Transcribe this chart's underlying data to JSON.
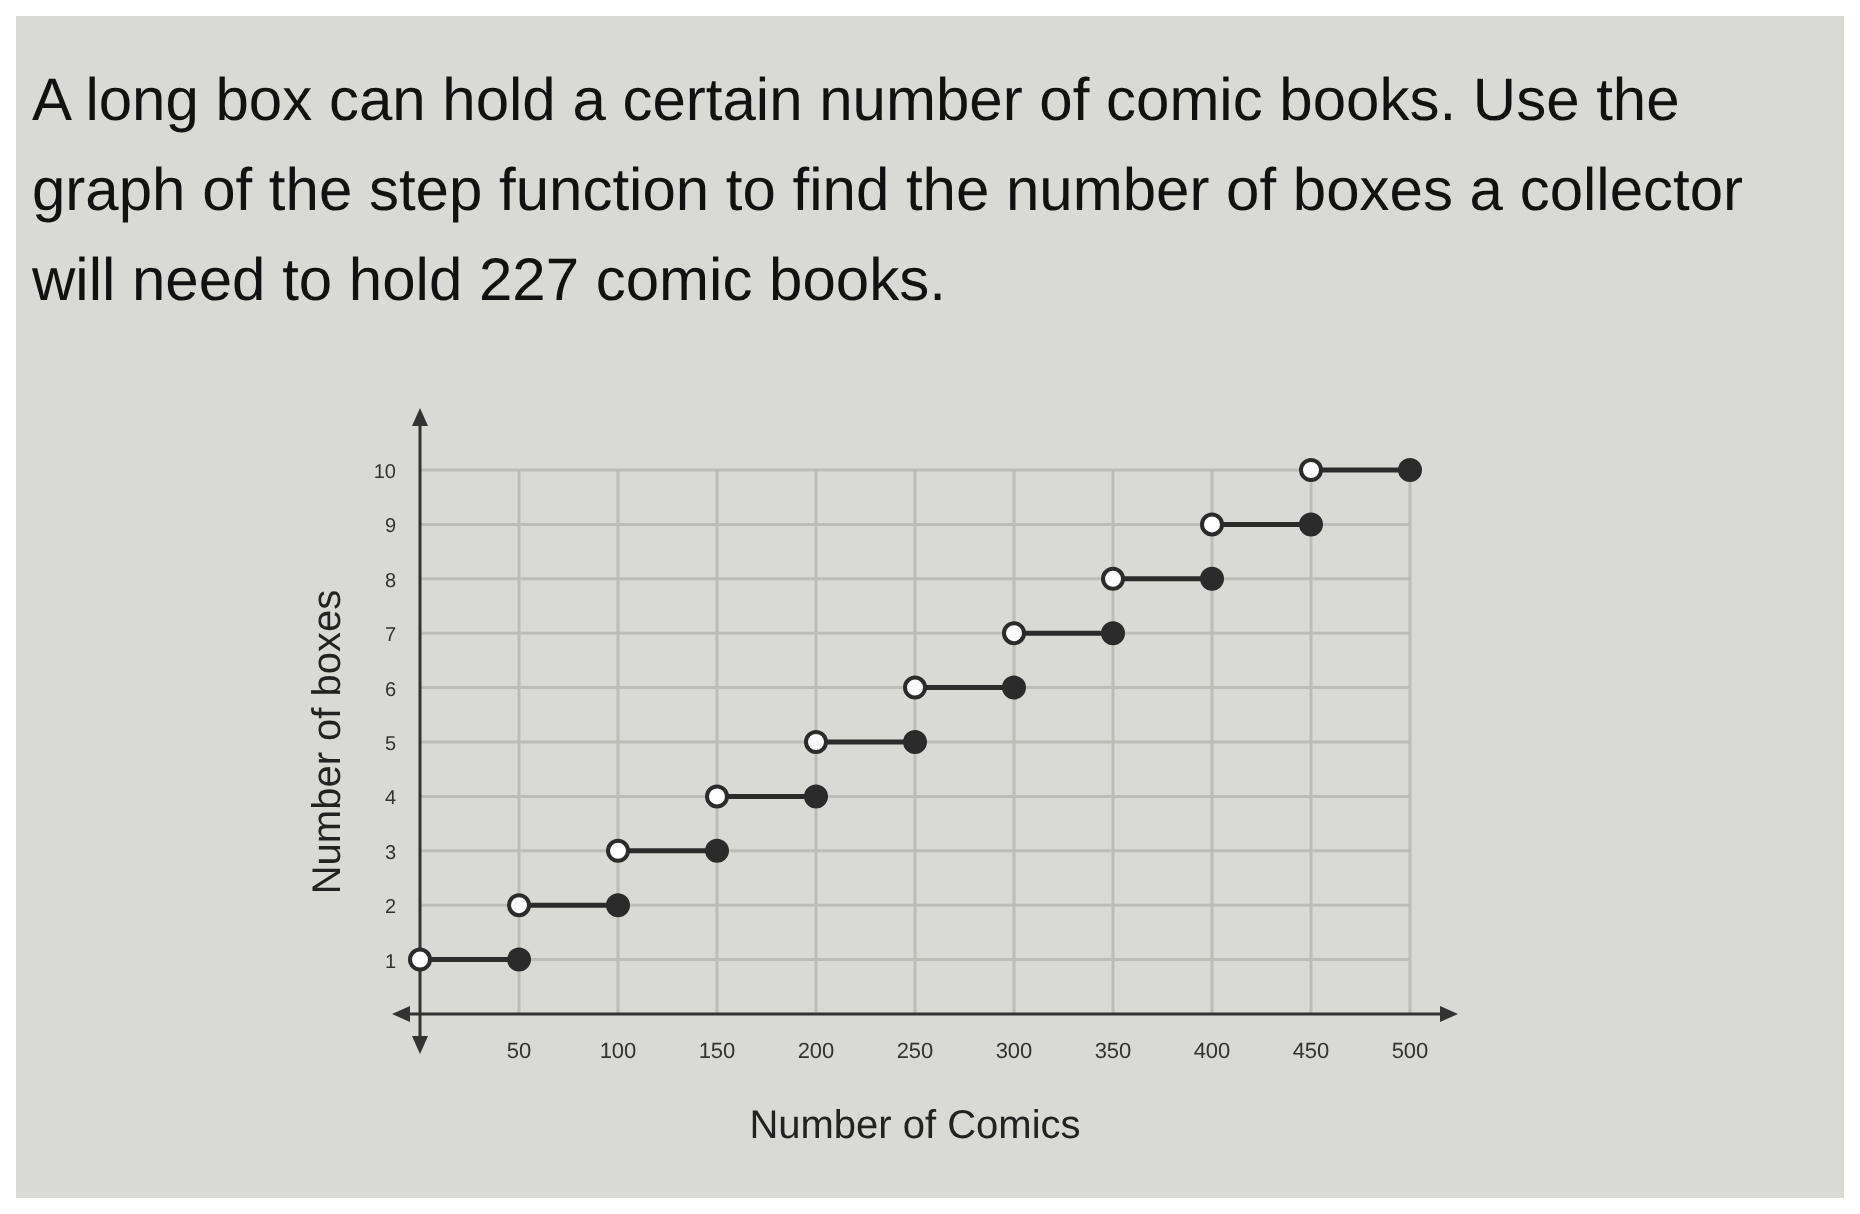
{
  "chart_data": {
    "type": "line",
    "title": "A long box can hold a certain number of comic books. Use the graph of the step function to find the number of boxes a collector will need to hold 227 comic books.",
    "xlabel": "Number of Comics",
    "ylabel": "Number of boxes",
    "xlim": [
      0,
      500
    ],
    "ylim": [
      0,
      10
    ],
    "xticks": [
      50,
      100,
      150,
      200,
      250,
      300,
      350,
      400,
      450,
      500
    ],
    "yticks": [
      1,
      2,
      3,
      4,
      5,
      6,
      7,
      8,
      9,
      10
    ],
    "grid": true,
    "marker": "circle",
    "series": [
      {
        "color": "#2b2b2b",
        "x": [
          0,
          50
        ],
        "values": [
          1,
          1
        ]
      },
      {
        "color": "#2b2b2b",
        "x": [
          50,
          100
        ],
        "values": [
          2,
          2
        ]
      },
      {
        "color": "#2b2b2b",
        "x": [
          100,
          150
        ],
        "values": [
          3,
          3
        ]
      },
      {
        "color": "#2b2b2b",
        "x": [
          150,
          200
        ],
        "values": [
          4,
          4
        ]
      },
      {
        "color": "#2b2b2b",
        "x": [
          200,
          250
        ],
        "values": [
          5,
          5
        ]
      },
      {
        "color": "#2b2b2b",
        "x": [
          250,
          300
        ],
        "values": [
          6,
          6
        ]
      },
      {
        "color": "#2b2b2b",
        "x": [
          300,
          350
        ],
        "values": [
          7,
          7
        ]
      },
      {
        "color": "#2b2b2b",
        "x": [
          350,
          400
        ],
        "values": [
          8,
          8
        ]
      },
      {
        "color": "#2b2b2b",
        "x": [
          400,
          450
        ],
        "values": [
          9,
          9
        ]
      },
      {
        "color": "#2b2b2b",
        "x": [
          450,
          500
        ],
        "values": [
          10,
          10
        ]
      }
    ]
  }
}
